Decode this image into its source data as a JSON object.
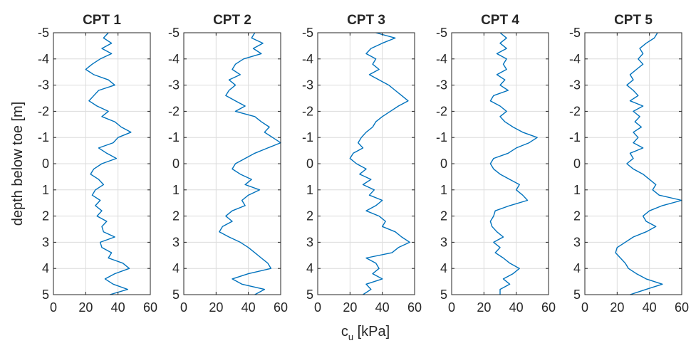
{
  "chart_data": {
    "type": "line",
    "shared_xlabel": "c",
    "shared_xlabel_subscript": "u",
    "shared_xlabel_unit": " [kPa]",
    "shared_ylabel": "depth below toe [m]",
    "xlim": [
      0,
      60
    ],
    "ylim": [
      -5,
      5
    ],
    "x_ticks": [
      "0",
      "20",
      "40",
      "60"
    ],
    "y_ticks": [
      "-5",
      "-4",
      "-3",
      "-2",
      "-1",
      "0",
      "1",
      "2",
      "3",
      "4",
      "5"
    ],
    "grid": true,
    "line_color": "#0072BD",
    "panels": [
      {
        "title": "CPT 1",
        "depth": [
          -5,
          -4.8,
          -4.6,
          -4.4,
          -4.2,
          -4.0,
          -3.8,
          -3.6,
          -3.4,
          -3.2,
          -3.0,
          -2.8,
          -2.6,
          -2.4,
          -2.2,
          -2.0,
          -1.8,
          -1.6,
          -1.4,
          -1.2,
          -1.0,
          -0.8,
          -0.6,
          -0.4,
          -0.2,
          0.0,
          0.2,
          0.4,
          0.6,
          0.8,
          1.0,
          1.2,
          1.4,
          1.6,
          1.8,
          2.0,
          2.2,
          2.4,
          2.6,
          2.8,
          3.0,
          3.2,
          3.4,
          3.6,
          3.8,
          4.0,
          4.2,
          4.4,
          4.6,
          4.8,
          5.0
        ],
        "cu": [
          34,
          31,
          36,
          30,
          36,
          29,
          24,
          20,
          25,
          34,
          38,
          28,
          25,
          22,
          27,
          34,
          30,
          38,
          42,
          48,
          40,
          37,
          28,
          33,
          39,
          30,
          25,
          23,
          28,
          31,
          26,
          24,
          29,
          26,
          30,
          27,
          33,
          30,
          31,
          38,
          29,
          30,
          36,
          34,
          43,
          47,
          38,
          32,
          37,
          46,
          35
        ]
      },
      {
        "title": "CPT 2",
        "depth": [
          -5,
          -4.8,
          -4.6,
          -4.4,
          -4.2,
          -4.0,
          -3.8,
          -3.6,
          -3.4,
          -3.2,
          -3.0,
          -2.8,
          -2.6,
          -2.4,
          -2.2,
          -2.0,
          -1.8,
          -1.6,
          -1.4,
          -1.2,
          -1.0,
          -0.8,
          -0.6,
          -0.4,
          -0.2,
          0.0,
          0.2,
          0.4,
          0.6,
          0.8,
          1.0,
          1.2,
          1.4,
          1.6,
          1.8,
          2.0,
          2.2,
          2.4,
          2.6,
          2.8,
          3.0,
          3.2,
          3.4,
          3.6,
          3.8,
          4.0,
          4.2,
          4.4,
          4.6,
          4.8,
          5.0
        ],
        "cu": [
          44,
          42,
          49,
          43,
          48,
          37,
          32,
          30,
          35,
          28,
          32,
          28,
          26,
          32,
          38,
          32,
          44,
          48,
          53,
          50,
          55,
          60,
          52,
          44,
          38,
          32,
          30,
          35,
          42,
          38,
          47,
          40,
          36,
          38,
          30,
          26,
          30,
          24,
          22,
          28,
          35,
          40,
          44,
          48,
          52,
          54,
          40,
          30,
          36,
          50,
          44
        ]
      },
      {
        "title": "CPT 3",
        "depth": [
          -5,
          -4.8,
          -4.6,
          -4.4,
          -4.2,
          -4.0,
          -3.8,
          -3.6,
          -3.4,
          -3.2,
          -3.0,
          -2.8,
          -2.6,
          -2.4,
          -2.2,
          -2.0,
          -1.8,
          -1.6,
          -1.4,
          -1.2,
          -1.0,
          -0.8,
          -0.6,
          -0.4,
          -0.2,
          0.0,
          0.2,
          0.4,
          0.6,
          0.8,
          1.0,
          1.2,
          1.4,
          1.6,
          1.8,
          2.0,
          2.2,
          2.4,
          2.6,
          2.8,
          3.0,
          3.2,
          3.4,
          3.6,
          3.8,
          4.0,
          4.2,
          4.4,
          4.6,
          4.8,
          5.0
        ],
        "cu": [
          36,
          48,
          40,
          33,
          30,
          36,
          34,
          38,
          32,
          38,
          44,
          48,
          52,
          56,
          50,
          45,
          40,
          36,
          34,
          30,
          27,
          25,
          28,
          22,
          20,
          24,
          30,
          26,
          33,
          28,
          35,
          32,
          40,
          36,
          30,
          38,
          42,
          40,
          48,
          52,
          57,
          50,
          46,
          30,
          36,
          38,
          34,
          40,
          30,
          33,
          28
        ]
      },
      {
        "title": "CPT 4",
        "depth": [
          -5,
          -4.8,
          -4.6,
          -4.4,
          -4.2,
          -4.0,
          -3.8,
          -3.6,
          -3.4,
          -3.2,
          -3.0,
          -2.8,
          -2.6,
          -2.4,
          -2.2,
          -2.0,
          -1.8,
          -1.6,
          -1.4,
          -1.2,
          -1.0,
          -0.8,
          -0.6,
          -0.4,
          -0.2,
          0.0,
          0.2,
          0.4,
          0.6,
          0.8,
          1.0,
          1.2,
          1.4,
          1.6,
          1.8,
          2.0,
          2.2,
          2.4,
          2.6,
          2.8,
          3.0,
          3.2,
          3.4,
          3.6,
          3.8,
          4.0,
          4.2,
          4.4,
          4.6,
          4.8,
          5.0
        ],
        "cu": [
          30,
          34,
          30,
          34,
          28,
          34,
          32,
          34,
          28,
          33,
          30,
          35,
          26,
          24,
          30,
          34,
          30,
          33,
          38,
          44,
          53,
          48,
          40,
          35,
          26,
          24,
          26,
          30,
          36,
          42,
          40,
          44,
          47,
          36,
          27,
          26,
          24,
          25,
          28,
          32,
          26,
          30,
          27,
          32,
          36,
          42,
          38,
          32,
          36,
          30,
          30
        ]
      },
      {
        "title": "CPT 5",
        "depth": [
          -5,
          -4.8,
          -4.6,
          -4.4,
          -4.2,
          -4.0,
          -3.8,
          -3.6,
          -3.4,
          -3.2,
          -3.0,
          -2.8,
          -2.6,
          -2.4,
          -2.2,
          -2.0,
          -1.8,
          -1.6,
          -1.4,
          -1.2,
          -1.0,
          -0.8,
          -0.6,
          -0.4,
          -0.2,
          0.0,
          0.2,
          0.4,
          0.6,
          0.8,
          1.0,
          1.2,
          1.4,
          1.6,
          1.8,
          2.0,
          2.2,
          2.4,
          2.6,
          2.8,
          3.0,
          3.2,
          3.4,
          3.6,
          3.8,
          4.0,
          4.2,
          4.4,
          4.6,
          4.8,
          5.0
        ],
        "cu": [
          45,
          43,
          38,
          34,
          36,
          33,
          36,
          32,
          28,
          30,
          26,
          30,
          33,
          28,
          36,
          30,
          34,
          31,
          35,
          30,
          33,
          30,
          36,
          28,
          30,
          26,
          30,
          36,
          40,
          44,
          42,
          46,
          60,
          48,
          40,
          36,
          38,
          44,
          38,
          30,
          25,
          20,
          19,
          22,
          25,
          27,
          32,
          38,
          48,
          38,
          28
        ]
      }
    ]
  }
}
